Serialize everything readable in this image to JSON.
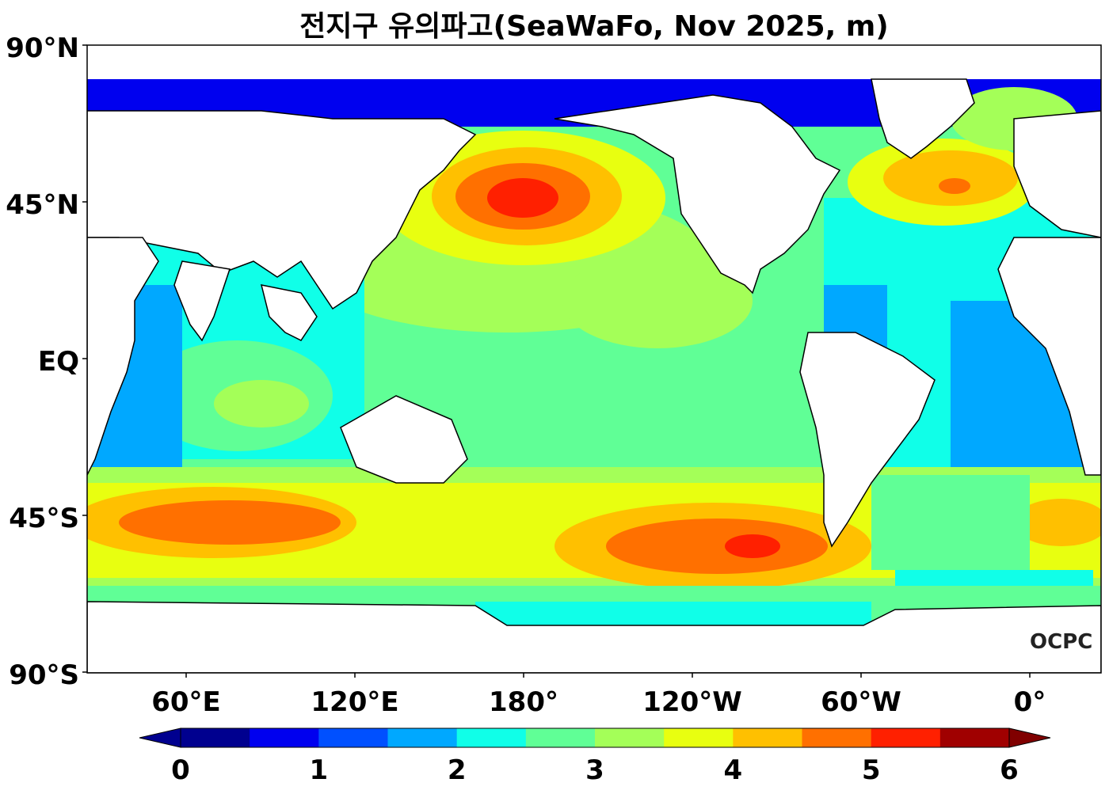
{
  "title": "전지구 유의파고(SeaWaFo, Nov 2025, m)",
  "lat_labels": [
    "90°N",
    "45°N",
    "EQ",
    "45°S",
    "90°S"
  ],
  "lon_labels": [
    "60°E",
    "120°E",
    "180°",
    "120°W",
    "60°W",
    "0°"
  ],
  "colorbar": {
    "ticks": [
      "0",
      "1",
      "2",
      "3",
      "4",
      "5",
      "6"
    ],
    "colors": [
      "#00008f",
      "#0000ef",
      "#0050ff",
      "#00a8ff",
      "#10ffe8",
      "#60ff96",
      "#a4ff58",
      "#e8ff10",
      "#ffc000",
      "#ff7000",
      "#ff2000",
      "#a00000"
    ],
    "under_color": "#00008f",
    "over_color": "#800000"
  },
  "colors": {
    "land": "#ffffff",
    "background_ocean": "#60ff96"
  },
  "watermark": "OCPC"
}
